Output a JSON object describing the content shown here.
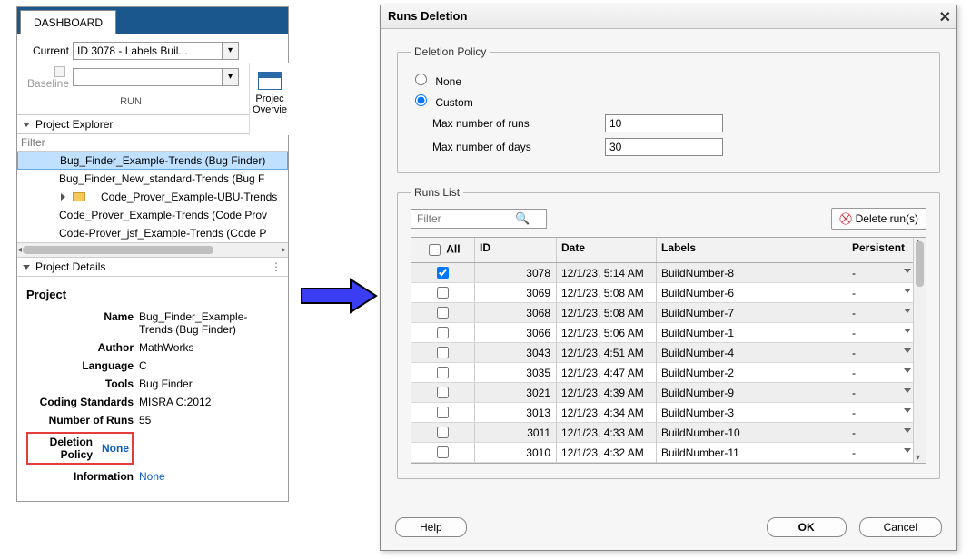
{
  "colors": {
    "accent": "#1a578c",
    "selection": "#bfe0ff",
    "link": "#0a5cc2",
    "highlight_border": "#e53c3c",
    "arrow": "#3a3df2"
  },
  "dashboard": {
    "tab_label": "DASHBOARD",
    "current_label": "Current",
    "current_value": "ID 3078 - Labels Buil...",
    "baseline_label": "Baseline",
    "baseline_value": "",
    "section_label": "RUN",
    "rightTool": {
      "line1": "Projec",
      "line2": "Overvie"
    }
  },
  "explorer": {
    "title": "Project Explorer",
    "filter_placeholder": "Filter",
    "items": [
      {
        "label": "Bug_Finder_Example-Trends (Bug Finder)",
        "selected": true
      },
      {
        "label": "Bug_Finder_New_standard-Trends (Bug F"
      },
      {
        "label": "Code_Prover_Example-UBU-Trends",
        "folder": true,
        "indent": true
      },
      {
        "label": "Code_Prover_Example-Trends (Code Prov"
      },
      {
        "label": "Code-Prover_jsf_Example-Trends (Code P"
      }
    ]
  },
  "details": {
    "title": "Project Details",
    "heading": "Project",
    "rows": {
      "name_k": "Name",
      "name_v": "Bug_Finder_Example-Trends (Bug Finder)",
      "author_k": "Author",
      "author_v": "MathWorks",
      "lang_k": "Language",
      "lang_v": "C",
      "tools_k": "Tools",
      "tools_v": "Bug Finder",
      "std_k": "Coding Standards",
      "std_v": "MISRA C:2012",
      "nruns_k": "Number of Runs",
      "nruns_v": "55",
      "delpol_k": "Deletion Policy",
      "delpol_v": "None",
      "info_k": "Information",
      "info_v": "None"
    }
  },
  "dialog": {
    "title": "Runs Deletion",
    "policy_legend": "Deletion Policy",
    "radio_none": "None",
    "radio_custom": "Custom",
    "max_runs_label": "Max number of runs",
    "max_runs_value": "10",
    "max_days_label": "Max number of days",
    "max_days_value": "30",
    "runs_legend": "Runs List",
    "filter_placeholder": "Filter",
    "delete_btn": "Delete run(s)",
    "columns": {
      "all": "All",
      "id": "ID",
      "date": "Date",
      "labels": "Labels",
      "persistent": "Persistent"
    },
    "rows": [
      {
        "checked": true,
        "id": "3078",
        "date": "12/1/23, 5:14 AM",
        "label": "BuildNumber-8",
        "persistent": "-"
      },
      {
        "checked": false,
        "id": "3069",
        "date": "12/1/23, 5:08 AM",
        "label": "BuildNumber-6",
        "persistent": "-"
      },
      {
        "checked": false,
        "id": "3068",
        "date": "12/1/23, 5:08 AM",
        "label": "BuildNumber-7",
        "persistent": "-"
      },
      {
        "checked": false,
        "id": "3066",
        "date": "12/1/23, 5:06 AM",
        "label": "BuildNumber-1",
        "persistent": "-"
      },
      {
        "checked": false,
        "id": "3043",
        "date": "12/1/23, 4:51 AM",
        "label": "BuildNumber-4",
        "persistent": "-"
      },
      {
        "checked": false,
        "id": "3035",
        "date": "12/1/23, 4:47 AM",
        "label": "BuildNumber-2",
        "persistent": "-"
      },
      {
        "checked": false,
        "id": "3021",
        "date": "12/1/23, 4:39 AM",
        "label": "BuildNumber-9",
        "persistent": "-"
      },
      {
        "checked": false,
        "id": "3013",
        "date": "12/1/23, 4:34 AM",
        "label": "BuildNumber-3",
        "persistent": "-"
      },
      {
        "checked": false,
        "id": "3011",
        "date": "12/1/23, 4:33 AM",
        "label": "BuildNumber-10",
        "persistent": "-"
      },
      {
        "checked": false,
        "id": "3010",
        "date": "12/1/23, 4:32 AM",
        "label": "BuildNumber-11",
        "persistent": "-"
      }
    ],
    "help": "Help",
    "ok": "OK",
    "cancel": "Cancel"
  }
}
